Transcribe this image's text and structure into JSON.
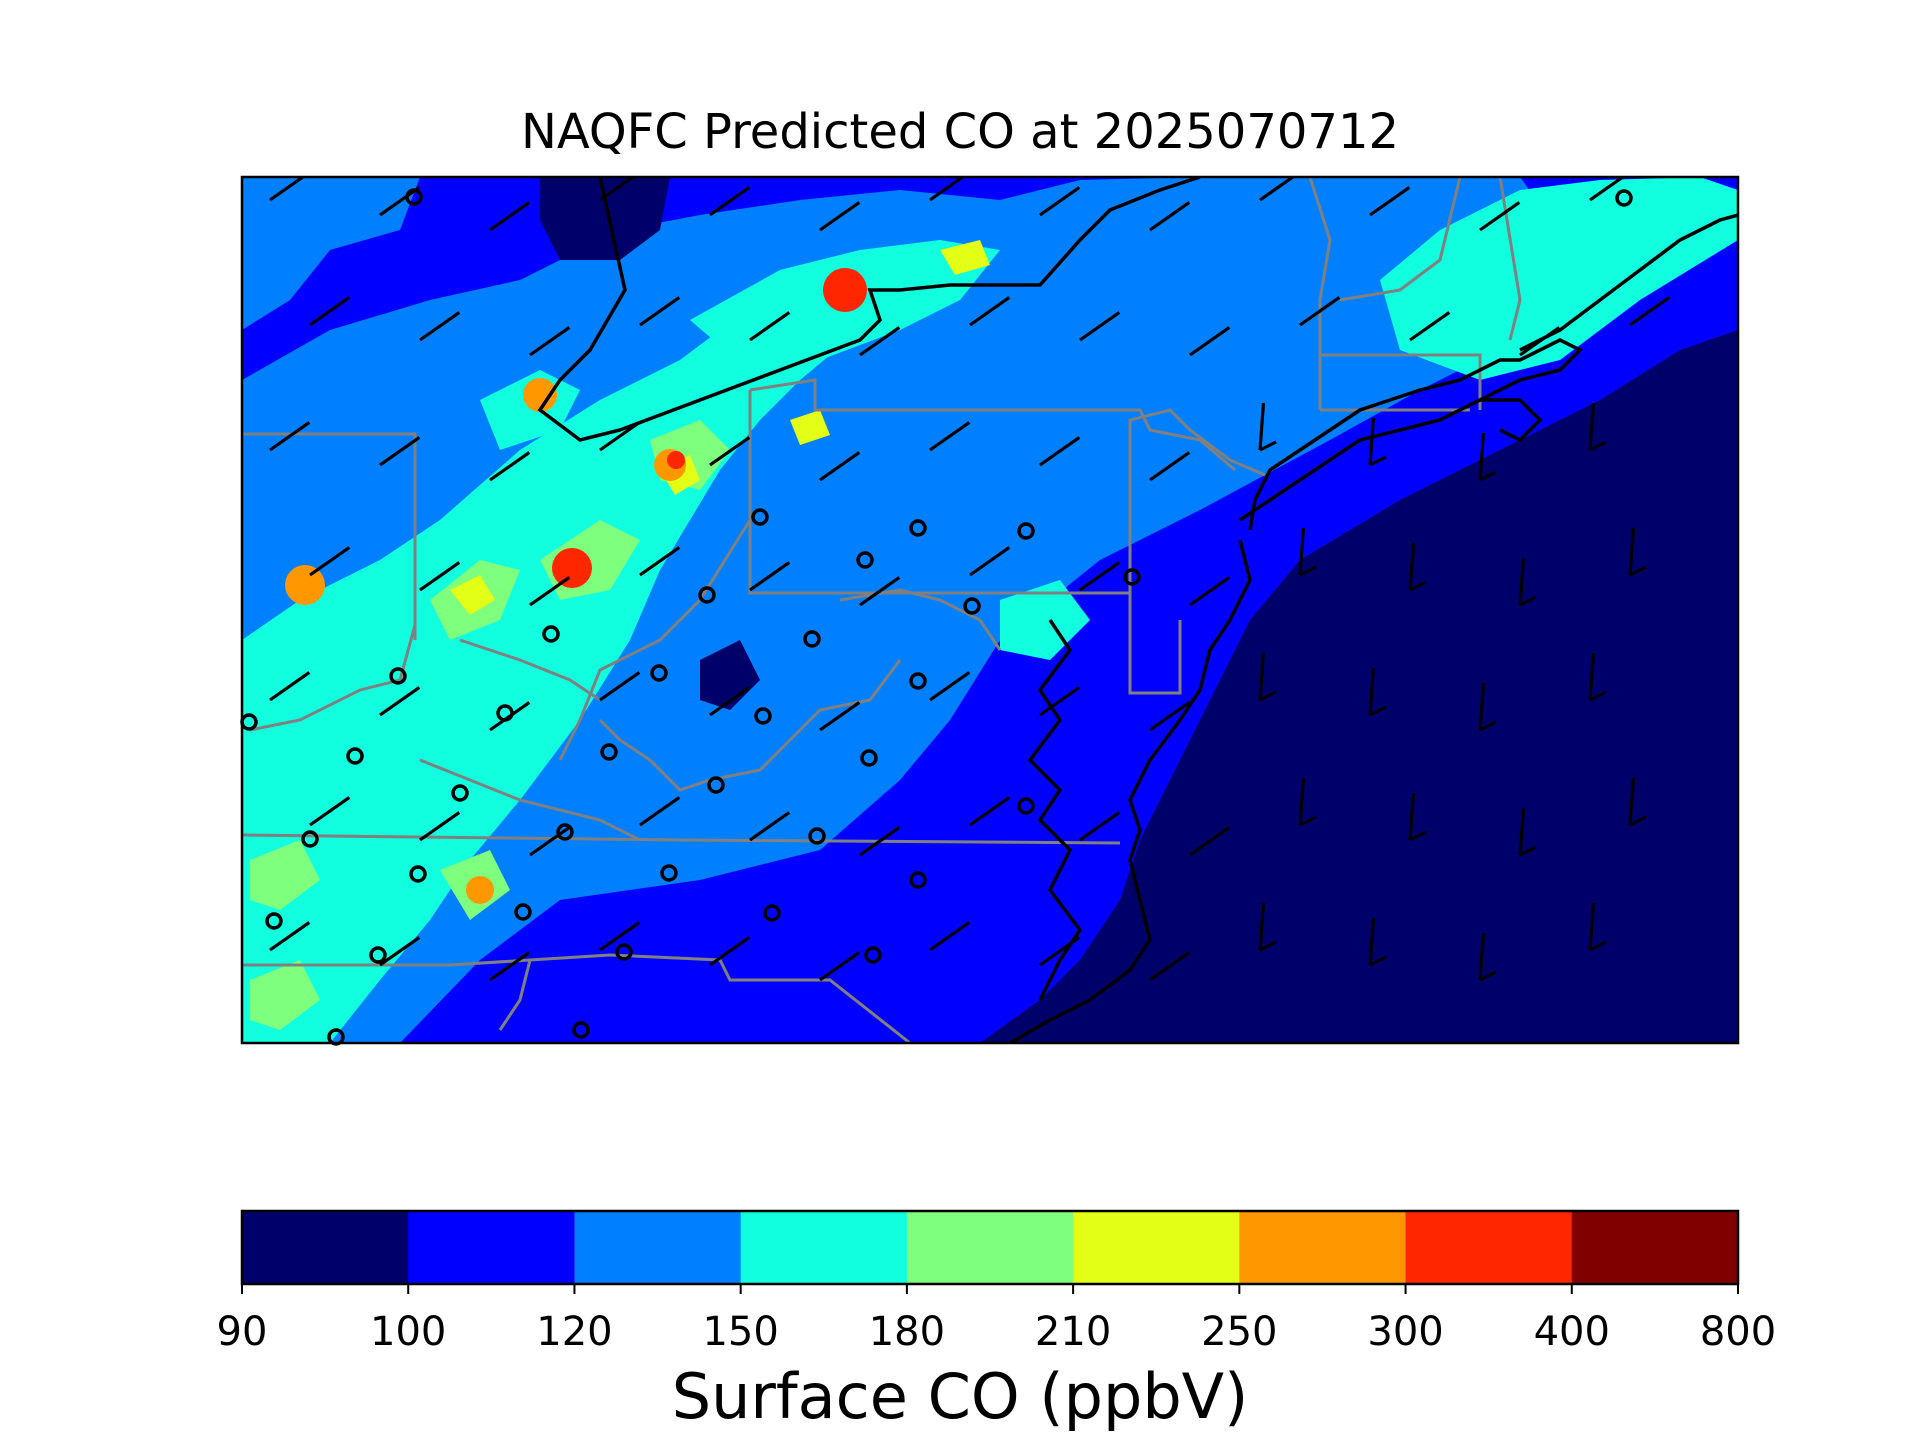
{
  "title": "NAQFC Predicted CO at 2025070712",
  "colorbar": {
    "label": "Surface CO (ppbV)",
    "ticks": [
      "90",
      "100",
      "120",
      "150",
      "180",
      "210",
      "250",
      "300",
      "400",
      "800"
    ],
    "colors": [
      "#00006b",
      "#0000ff",
      "#0080ff",
      "#11ffdf",
      "#7fff7e",
      "#e3ff16",
      "#ff9700",
      "#ff2600",
      "#800000"
    ]
  },
  "chart_data": {
    "type": "heatmap",
    "title": "NAQFC Predicted CO at 2025070712",
    "variable": "Surface CO",
    "units": "ppbV",
    "levels": [
      90,
      100,
      120,
      150,
      180,
      210,
      250,
      300,
      400,
      800
    ],
    "level_colors": [
      "#00006b",
      "#0000ff",
      "#0080ff",
      "#11ffdf",
      "#7fff7e",
      "#e3ff16",
      "#ff9700",
      "#ff2600",
      "#800000"
    ],
    "overlays": [
      "wind barbs",
      "monitoring station circles",
      "state boundaries",
      "coastlines"
    ]
  }
}
